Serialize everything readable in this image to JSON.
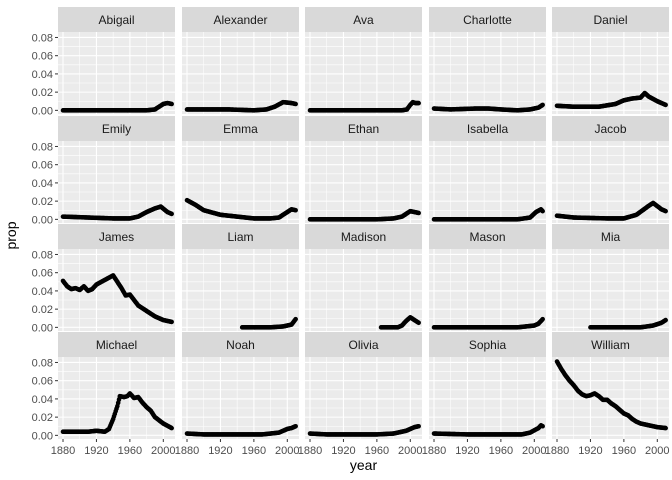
{
  "chart_data": {
    "type": "line",
    "facet_layout": {
      "rows": 4,
      "cols": 5
    },
    "xlabel": "year",
    "ylabel": "prop",
    "xlim": [
      1874,
      2014
    ],
    "ylim": [
      -0.004,
      0.086
    ],
    "x_ticks": [
      1880,
      1920,
      1960,
      2000
    ],
    "x_tick_labels": [
      "1880",
      "1920",
      "1960",
      "2000"
    ],
    "y_ticks": [
      0,
      0.02,
      0.04,
      0.06,
      0.08
    ],
    "y_tick_labels": [
      "0.00",
      "0.02",
      "0.04",
      "0.06",
      "0.08"
    ],
    "grid": true,
    "colors": {
      "panel": "#EBEBEB",
      "strip": "#D9D9D9",
      "grid_major": "#FFFFFF",
      "point": "#000000"
    },
    "panels": [
      {
        "name": "Abigail",
        "points": [
          [
            1880,
            0.0
          ],
          [
            1980,
            0.0
          ],
          [
            1990,
            0.001
          ],
          [
            1995,
            0.004
          ],
          [
            2000,
            0.007
          ],
          [
            2005,
            0.008
          ],
          [
            2010,
            0.007
          ]
        ]
      },
      {
        "name": "Alexander",
        "points": [
          [
            1880,
            0.001
          ],
          [
            1900,
            0.001
          ],
          [
            1930,
            0.001
          ],
          [
            1960,
            0.0
          ],
          [
            1975,
            0.001
          ],
          [
            1985,
            0.004
          ],
          [
            1995,
            0.009
          ],
          [
            2005,
            0.008
          ],
          [
            2010,
            0.007
          ]
        ]
      },
      {
        "name": "Ava",
        "points": [
          [
            1880,
            0.0
          ],
          [
            1990,
            0.0
          ],
          [
            1996,
            0.001
          ],
          [
            2000,
            0.006
          ],
          [
            2003,
            0.009
          ],
          [
            2006,
            0.008
          ],
          [
            2010,
            0.008
          ]
        ]
      },
      {
        "name": "Charlotte",
        "points": [
          [
            1880,
            0.002
          ],
          [
            1900,
            0.001
          ],
          [
            1930,
            0.002
          ],
          [
            1945,
            0.002
          ],
          [
            1960,
            0.001
          ],
          [
            1980,
            0.0
          ],
          [
            1995,
            0.001
          ],
          [
            2005,
            0.003
          ],
          [
            2010,
            0.006
          ]
        ]
      },
      {
        "name": "Daniel",
        "points": [
          [
            1880,
            0.005
          ],
          [
            1900,
            0.004
          ],
          [
            1930,
            0.004
          ],
          [
            1950,
            0.007
          ],
          [
            1960,
            0.011
          ],
          [
            1970,
            0.013
          ],
          [
            1980,
            0.014
          ],
          [
            1985,
            0.019
          ],
          [
            1990,
            0.015
          ],
          [
            2000,
            0.01
          ],
          [
            2010,
            0.006
          ]
        ]
      },
      {
        "name": "Emily",
        "points": [
          [
            1880,
            0.003
          ],
          [
            1910,
            0.002
          ],
          [
            1940,
            0.001
          ],
          [
            1960,
            0.001
          ],
          [
            1970,
            0.003
          ],
          [
            1980,
            0.008
          ],
          [
            1990,
            0.012
          ],
          [
            1997,
            0.014
          ],
          [
            2005,
            0.008
          ],
          [
            2010,
            0.006
          ]
        ]
      },
      {
        "name": "Emma",
        "points": [
          [
            1880,
            0.021
          ],
          [
            1890,
            0.016
          ],
          [
            1900,
            0.01
          ],
          [
            1920,
            0.005
          ],
          [
            1940,
            0.003
          ],
          [
            1960,
            0.001
          ],
          [
            1980,
            0.001
          ],
          [
            1990,
            0.002
          ],
          [
            2000,
            0.008
          ],
          [
            2005,
            0.011
          ],
          [
            2010,
            0.01
          ]
        ]
      },
      {
        "name": "Ethan",
        "points": [
          [
            1880,
            0.0
          ],
          [
            1960,
            0.0
          ],
          [
            1980,
            0.001
          ],
          [
            1990,
            0.003
          ],
          [
            2000,
            0.009
          ],
          [
            2005,
            0.008
          ],
          [
            2010,
            0.007
          ]
        ]
      },
      {
        "name": "Isabella",
        "points": [
          [
            1880,
            0.0
          ],
          [
            1980,
            0.0
          ],
          [
            1995,
            0.002
          ],
          [
            2002,
            0.008
          ],
          [
            2008,
            0.011
          ],
          [
            2010,
            0.009
          ]
        ]
      },
      {
        "name": "Jacob",
        "points": [
          [
            1880,
            0.004
          ],
          [
            1900,
            0.002
          ],
          [
            1940,
            0.001
          ],
          [
            1960,
            0.001
          ],
          [
            1975,
            0.005
          ],
          [
            1990,
            0.015
          ],
          [
            1995,
            0.018
          ],
          [
            2005,
            0.011
          ],
          [
            2010,
            0.009
          ]
        ]
      },
      {
        "name": "James",
        "points": [
          [
            1880,
            0.051
          ],
          [
            1885,
            0.045
          ],
          [
            1890,
            0.042
          ],
          [
            1895,
            0.043
          ],
          [
            1900,
            0.041
          ],
          [
            1905,
            0.045
          ],
          [
            1910,
            0.04
          ],
          [
            1915,
            0.042
          ],
          [
            1920,
            0.047
          ],
          [
            1930,
            0.052
          ],
          [
            1940,
            0.057
          ],
          [
            1945,
            0.05
          ],
          [
            1950,
            0.043
          ],
          [
            1955,
            0.035
          ],
          [
            1960,
            0.036
          ],
          [
            1965,
            0.03
          ],
          [
            1970,
            0.024
          ],
          [
            1980,
            0.018
          ],
          [
            1990,
            0.012
          ],
          [
            2000,
            0.008
          ],
          [
            2010,
            0.006
          ]
        ]
      },
      {
        "name": "Liam",
        "points": [
          [
            1946,
            0.0
          ],
          [
            1980,
            0.0
          ],
          [
            1995,
            0.001
          ],
          [
            2005,
            0.003
          ],
          [
            2010,
            0.009
          ]
        ]
      },
      {
        "name": "Madison",
        "points": [
          [
            1965,
            0.0
          ],
          [
            1985,
            0.0
          ],
          [
            1990,
            0.002
          ],
          [
            1995,
            0.007
          ],
          [
            2000,
            0.011
          ],
          [
            2005,
            0.008
          ],
          [
            2010,
            0.005
          ]
        ]
      },
      {
        "name": "Mason",
        "points": [
          [
            1880,
            0.0
          ],
          [
            1980,
            0.0
          ],
          [
            2000,
            0.002
          ],
          [
            2005,
            0.004
          ],
          [
            2010,
            0.009
          ]
        ]
      },
      {
        "name": "Mia",
        "points": [
          [
            1920,
            0.0
          ],
          [
            1940,
            0.0
          ],
          [
            1980,
            0.0
          ],
          [
            1995,
            0.002
          ],
          [
            2005,
            0.005
          ],
          [
            2010,
            0.008
          ]
        ]
      },
      {
        "name": "Michael",
        "points": [
          [
            1880,
            0.004
          ],
          [
            1910,
            0.004
          ],
          [
            1920,
            0.005
          ],
          [
            1930,
            0.004
          ],
          [
            1935,
            0.007
          ],
          [
            1940,
            0.018
          ],
          [
            1945,
            0.032
          ],
          [
            1948,
            0.043
          ],
          [
            1953,
            0.042
          ],
          [
            1957,
            0.043
          ],
          [
            1960,
            0.046
          ],
          [
            1965,
            0.041
          ],
          [
            1970,
            0.042
          ],
          [
            1975,
            0.036
          ],
          [
            1980,
            0.031
          ],
          [
            1985,
            0.027
          ],
          [
            1990,
            0.02
          ],
          [
            2000,
            0.013
          ],
          [
            2010,
            0.008
          ]
        ]
      },
      {
        "name": "Noah",
        "points": [
          [
            1880,
            0.002
          ],
          [
            1900,
            0.001
          ],
          [
            1940,
            0.001
          ],
          [
            1970,
            0.001
          ],
          [
            1990,
            0.003
          ],
          [
            2000,
            0.007
          ],
          [
            2005,
            0.008
          ],
          [
            2010,
            0.01
          ]
        ]
      },
      {
        "name": "Olivia",
        "points": [
          [
            1880,
            0.002
          ],
          [
            1900,
            0.001
          ],
          [
            1930,
            0.001
          ],
          [
            1960,
            0.001
          ],
          [
            1980,
            0.002
          ],
          [
            1995,
            0.005
          ],
          [
            2005,
            0.009
          ],
          [
            2010,
            0.01
          ]
        ]
      },
      {
        "name": "Sophia",
        "points": [
          [
            1880,
            0.002
          ],
          [
            1920,
            0.001
          ],
          [
            1960,
            0.001
          ],
          [
            1985,
            0.001
          ],
          [
            1995,
            0.003
          ],
          [
            2005,
            0.008
          ],
          [
            2008,
            0.011
          ],
          [
            2010,
            0.01
          ]
        ]
      },
      {
        "name": "William",
        "points": [
          [
            1880,
            0.081
          ],
          [
            1885,
            0.073
          ],
          [
            1890,
            0.066
          ],
          [
            1895,
            0.06
          ],
          [
            1900,
            0.055
          ],
          [
            1905,
            0.049
          ],
          [
            1910,
            0.045
          ],
          [
            1915,
            0.043
          ],
          [
            1920,
            0.044
          ],
          [
            1925,
            0.046
          ],
          [
            1930,
            0.043
          ],
          [
            1935,
            0.039
          ],
          [
            1940,
            0.039
          ],
          [
            1945,
            0.035
          ],
          [
            1950,
            0.032
          ],
          [
            1955,
            0.028
          ],
          [
            1960,
            0.024
          ],
          [
            1965,
            0.022
          ],
          [
            1970,
            0.018
          ],
          [
            1975,
            0.015
          ],
          [
            1980,
            0.013
          ],
          [
            1990,
            0.011
          ],
          [
            2000,
            0.009
          ],
          [
            2010,
            0.008
          ]
        ]
      }
    ]
  }
}
